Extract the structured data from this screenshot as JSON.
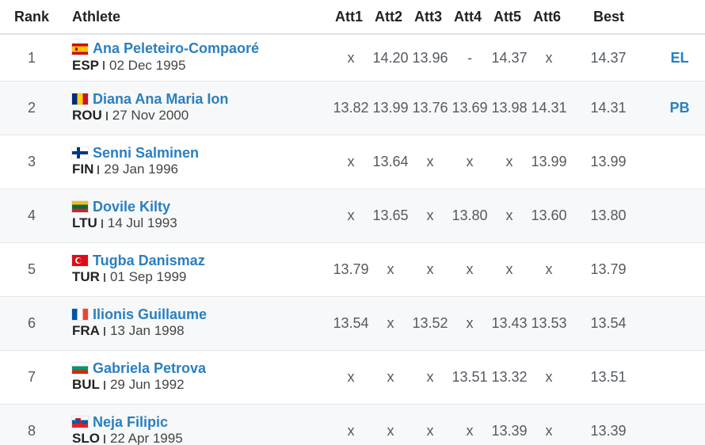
{
  "header": {
    "rank": "Rank",
    "athlete": "Athlete",
    "att1": "Att1",
    "att2": "Att2",
    "att3": "Att3",
    "att4": "Att4",
    "att5": "Att5",
    "att6": "Att6",
    "best": "Best"
  },
  "rows": [
    {
      "rank": "1",
      "flag": "flag-esp",
      "name": "Ana Peleteiro-Compaoré",
      "country": "ESP",
      "dob": "02 Dec 1995",
      "attempts": [
        "x",
        "14.20",
        "13.96",
        "-",
        "14.37",
        "x"
      ],
      "best": "14.37",
      "note": "EL"
    },
    {
      "rank": "2",
      "flag": "flag-rou",
      "name": "Diana Ana Maria Ion",
      "country": "ROU",
      "dob": "27 Nov 2000",
      "attempts": [
        "13.82",
        "13.99",
        "13.76",
        "13.69",
        "13.98",
        "14.31"
      ],
      "best": "14.31",
      "note": "PB"
    },
    {
      "rank": "3",
      "flag": "flag-fin",
      "name": "Senni Salminen",
      "country": "FIN",
      "dob": "29 Jan 1996",
      "attempts": [
        "x",
        "13.64",
        "x",
        "x",
        "x",
        "13.99"
      ],
      "best": "13.99",
      "note": ""
    },
    {
      "rank": "4",
      "flag": "flag-ltu",
      "name": "Dovile Kilty",
      "country": "LTU",
      "dob": "14 Jul 1993",
      "attempts": [
        "x",
        "13.65",
        "x",
        "13.80",
        "x",
        "13.60"
      ],
      "best": "13.80",
      "note": ""
    },
    {
      "rank": "5",
      "flag": "flag-tur",
      "name": "Tugba Danismaz",
      "country": "TUR",
      "dob": "01 Sep 1999",
      "attempts": [
        "13.79",
        "x",
        "x",
        "x",
        "x",
        "x"
      ],
      "best": "13.79",
      "note": ""
    },
    {
      "rank": "6",
      "flag": "flag-fra",
      "name": "Ilionis Guillaume",
      "country": "FRA",
      "dob": "13 Jan 1998",
      "attempts": [
        "13.54",
        "x",
        "13.52",
        "x",
        "13.43",
        "13.53"
      ],
      "best": "13.54",
      "note": ""
    },
    {
      "rank": "7",
      "flag": "flag-bul",
      "name": "Gabriela Petrova",
      "country": "BUL",
      "dob": "29 Jun 1992",
      "attempts": [
        "x",
        "x",
        "x",
        "13.51",
        "13.32",
        "x"
      ],
      "best": "13.51",
      "note": ""
    },
    {
      "rank": "8",
      "flag": "flag-slo",
      "name": "Neja Filipic",
      "country": "SLO",
      "dob": "22 Apr 1995",
      "attempts": [
        "x",
        "x",
        "x",
        "x",
        "13.39",
        "x"
      ],
      "best": "13.39",
      "note": ""
    }
  ]
}
